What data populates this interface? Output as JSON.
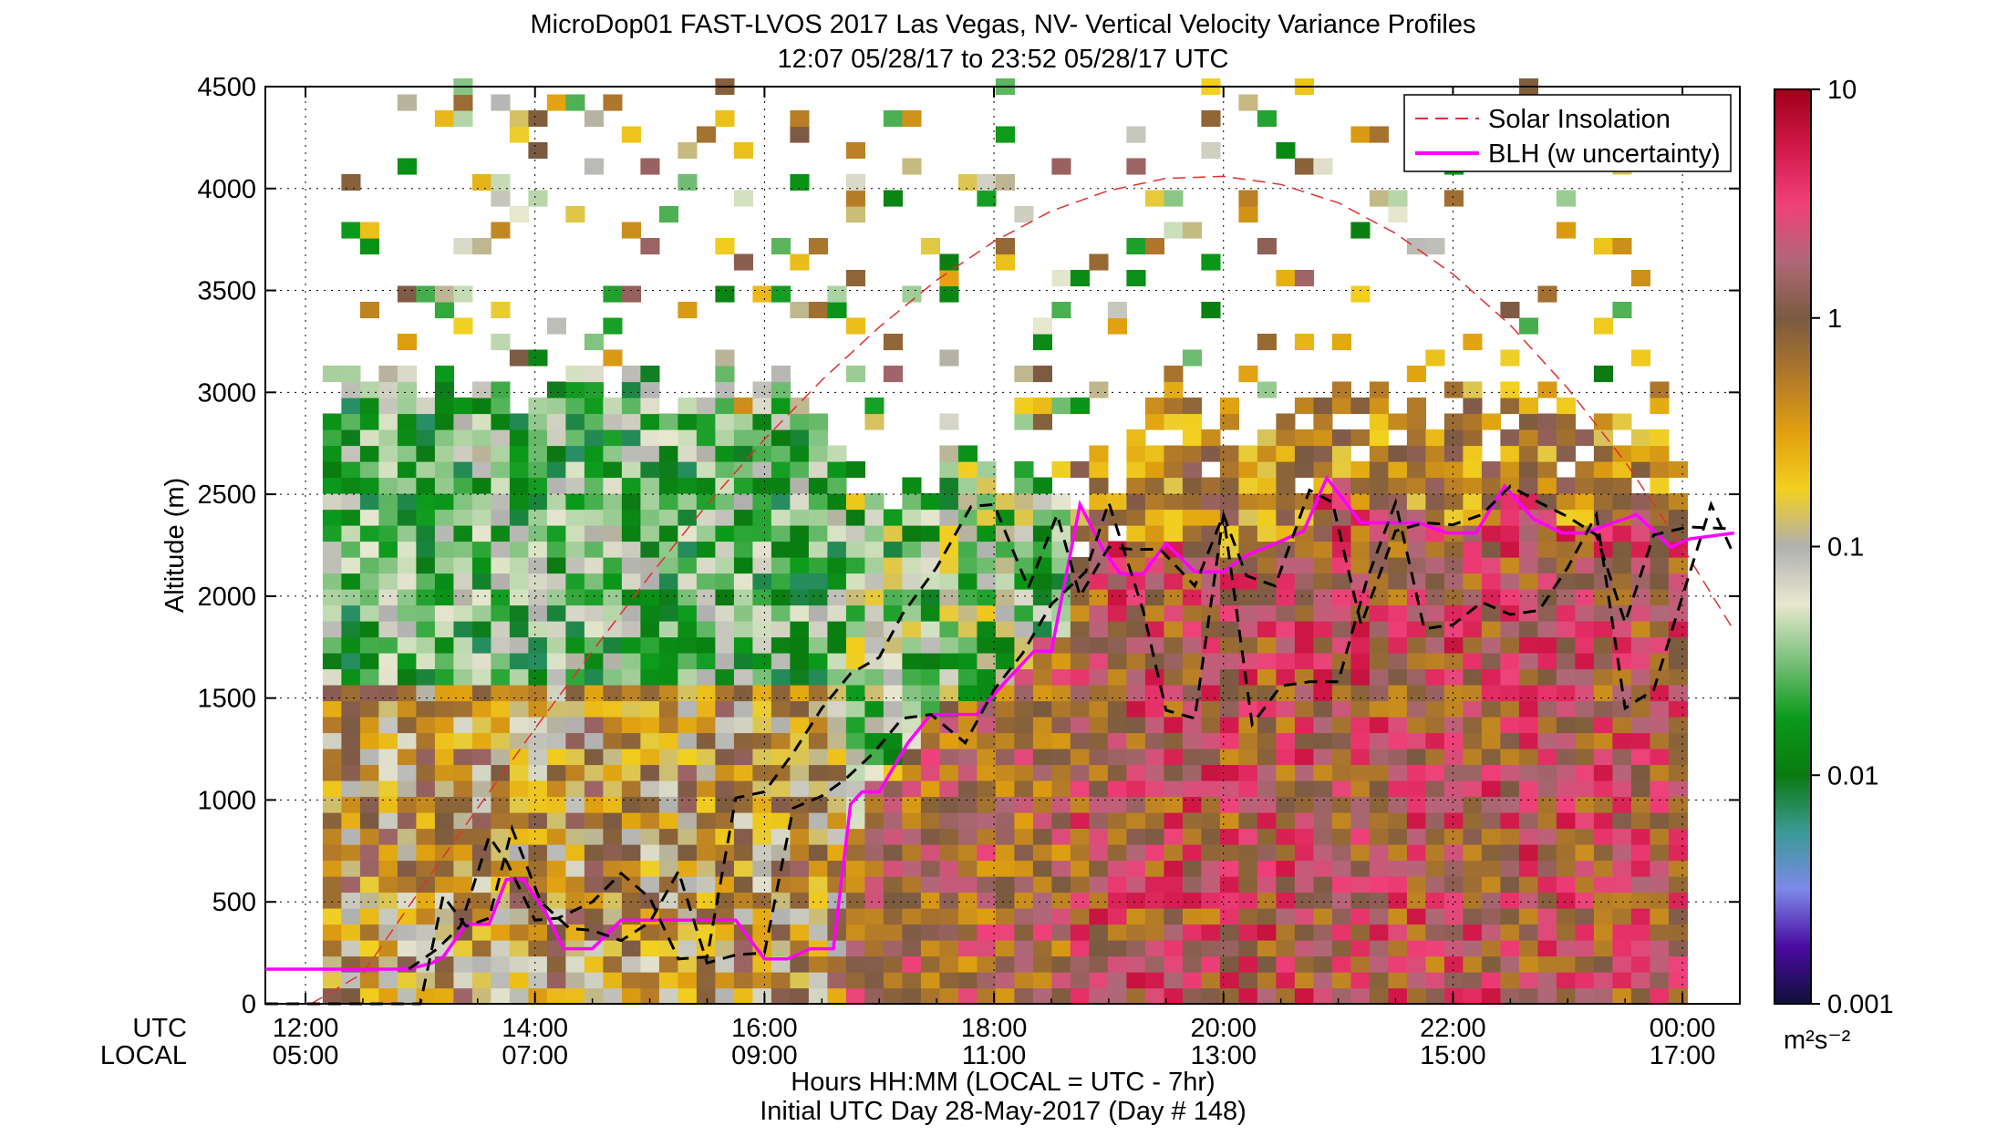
{
  "chart_data": {
    "type": "heatmap",
    "title": "MicroDop01 FAST-LVOS 2017 Las Vegas, NV- Vertical Velocity Variance Profiles",
    "subtitle": "12:07 05/28/17 to 23:52 05/28/17  UTC",
    "ylabel": "Altitude (m)",
    "xlabel": "Hours HH:MM  (LOCAL = UTC - 7hr)",
    "xlabel2": "Initial UTC Day 28-May-2017 (Day # 148)",
    "x_row_labels": [
      "UTC",
      "LOCAL"
    ],
    "x_ticks_utc": [
      "12:00",
      "14:00",
      "16:00",
      "18:00",
      "20:00",
      "22:00",
      "00:00"
    ],
    "x_ticks_local": [
      "05:00",
      "07:00",
      "09:00",
      "11:00",
      "13:00",
      "15:00",
      "17:00"
    ],
    "x_tick_hours": [
      12,
      14,
      16,
      18,
      20,
      22,
      24
    ],
    "xlim_hours": [
      11.65,
      24.5
    ],
    "y_ticks": [
      "0",
      "500",
      "1000",
      "1500",
      "2000",
      "2500",
      "3000",
      "3500",
      "4000",
      "4500"
    ],
    "ylim": [
      0,
      4500
    ],
    "grid": true,
    "colorbar": {
      "scale": "log",
      "range": [
        0.001,
        10
      ],
      "tick_labels": [
        "0.001",
        "0.01",
        "0.1",
        "1",
        "10"
      ],
      "unit_label": "m²s⁻²",
      "colors": [
        "#10103a",
        "#4a0aa0",
        "#7e88ea",
        "#3a9a96",
        "#0a7a10",
        "#0a9a1a",
        "#7ac07a",
        "#e8e8d0",
        "#b0b0b0",
        "#f2d020",
        "#e0a010",
        "#b0782a",
        "#7a5a40",
        "#b06878",
        "#f0407a",
        "#d01848",
        "#a0001a"
      ]
    },
    "series": [
      {
        "name": "Solar Insolation",
        "style": "dashed",
        "color": "#e03030",
        "x_hours": [
          12.05,
          12.5,
          13,
          13.5,
          14,
          14.5,
          15,
          15.5,
          16,
          16.5,
          17,
          17.5,
          18,
          18.5,
          19,
          19.5,
          20,
          20.5,
          21,
          21.5,
          22,
          22.5,
          23,
          23.5,
          24,
          24.45
        ],
        "y": [
          0,
          150,
          560,
          960,
          1350,
          1730,
          2100,
          2450,
          2770,
          3060,
          3320,
          3550,
          3740,
          3890,
          3990,
          4050,
          4060,
          4020,
          3930,
          3780,
          3580,
          3330,
          3020,
          2660,
          2240,
          1830
        ]
      },
      {
        "name": "BLH (w uncertainty)",
        "style": "solid",
        "color": "#ff00ff",
        "x_hours": [
          11.65,
          12.9,
          13.1,
          13.2,
          13.4,
          13.6,
          13.75,
          13.9,
          14.1,
          14.25,
          14.5,
          14.75,
          15.0,
          15.25,
          15.5,
          15.75,
          16.0,
          16.2,
          16.4,
          16.6,
          16.75,
          16.85,
          17.0,
          17.25,
          17.45,
          17.65,
          17.85,
          18.1,
          18.35,
          18.5,
          18.75,
          18.95,
          19.1,
          19.3,
          19.5,
          19.75,
          20.0,
          20.2,
          20.5,
          20.7,
          20.9,
          21.2,
          21.55,
          21.7,
          21.95,
          22.2,
          22.45,
          22.7,
          22.95,
          23.15,
          23.4,
          23.6,
          23.9,
          24.05,
          24.45
        ],
        "y": [
          170,
          170,
          200,
          230,
          390,
          390,
          610,
          610,
          440,
          270,
          270,
          410,
          410,
          410,
          410,
          410,
          220,
          220,
          270,
          270,
          980,
          1040,
          1040,
          1280,
          1420,
          1420,
          1420,
          1580,
          1730,
          1730,
          2450,
          2230,
          2110,
          2110,
          2260,
          2120,
          2120,
          2200,
          2270,
          2320,
          2580,
          2360,
          2360,
          2360,
          2310,
          2310,
          2540,
          2380,
          2310,
          2310,
          2360,
          2400,
          2240,
          2280,
          2310
        ]
      },
      {
        "name": "BLH upper",
        "style": "dashed",
        "color": "#000000",
        "x_hours": [
          12.9,
          13.15,
          13.35,
          13.6,
          13.75,
          14.0,
          14.2,
          14.5,
          14.75,
          15.0,
          15.25,
          15.5,
          15.75,
          16.0,
          16.25,
          16.5,
          16.75,
          17.0,
          17.2,
          17.5,
          17.8,
          18.0,
          18.3,
          18.55,
          18.75,
          19.0,
          19.2,
          19.45,
          19.75,
          20.0,
          20.2,
          20.45,
          20.75,
          20.95,
          21.2,
          21.5,
          21.75,
          22.0,
          22.25,
          22.5,
          22.75,
          23.0,
          23.25,
          23.5,
          23.75,
          24.05,
          24.45
        ],
        "y": [
          170,
          270,
          380,
          820,
          700,
          410,
          420,
          500,
          640,
          520,
          220,
          230,
          1010,
          1040,
          1230,
          1450,
          1620,
          1700,
          1910,
          2140,
          2440,
          2450,
          2040,
          2400,
          2000,
          2240,
          2230,
          2230,
          2050,
          2400,
          2100,
          2050,
          2520,
          2460,
          1860,
          2320,
          2360,
          2350,
          2400,
          2540,
          2460,
          2390,
          2300,
          1870,
          2300,
          2340,
          2330
        ]
      },
      {
        "name": "BLH lower",
        "style": "dashed",
        "color": "#000000",
        "x_hours": [
          11.65,
          12.55,
          13.0,
          13.2,
          13.4,
          13.6,
          13.8,
          14.05,
          14.3,
          14.5,
          14.75,
          15.0,
          15.25,
          15.5,
          15.75,
          16.0,
          16.25,
          16.5,
          16.7,
          16.95,
          17.2,
          17.45,
          17.75,
          18.0,
          18.25,
          18.5,
          18.8,
          19.0,
          19.3,
          19.5,
          19.75,
          20.0,
          20.25,
          20.5,
          20.75,
          21.0,
          21.25,
          21.5,
          21.75,
          22.0,
          22.25,
          22.5,
          22.75,
          23.0,
          23.25,
          23.5,
          23.75,
          24.0,
          24.25,
          24.45
        ],
        "y": [
          0,
          0,
          0,
          530,
          380,
          420,
          860,
          500,
          370,
          360,
          310,
          400,
          650,
          200,
          240,
          250,
          960,
          1020,
          1100,
          1230,
          1400,
          1420,
          1280,
          1540,
          1720,
          1960,
          2120,
          2460,
          1930,
          1440,
          1400,
          2400,
          1370,
          1560,
          1580,
          1580,
          2080,
          2460,
          1840,
          1860,
          1970,
          1910,
          1930,
          2140,
          2400,
          1450,
          1540,
          2000,
          2450,
          2200
        ]
      }
    ],
    "legend": {
      "placement": "top-right",
      "entries": [
        "Solar Insolation",
        "BLH (w uncertainty)"
      ]
    }
  }
}
